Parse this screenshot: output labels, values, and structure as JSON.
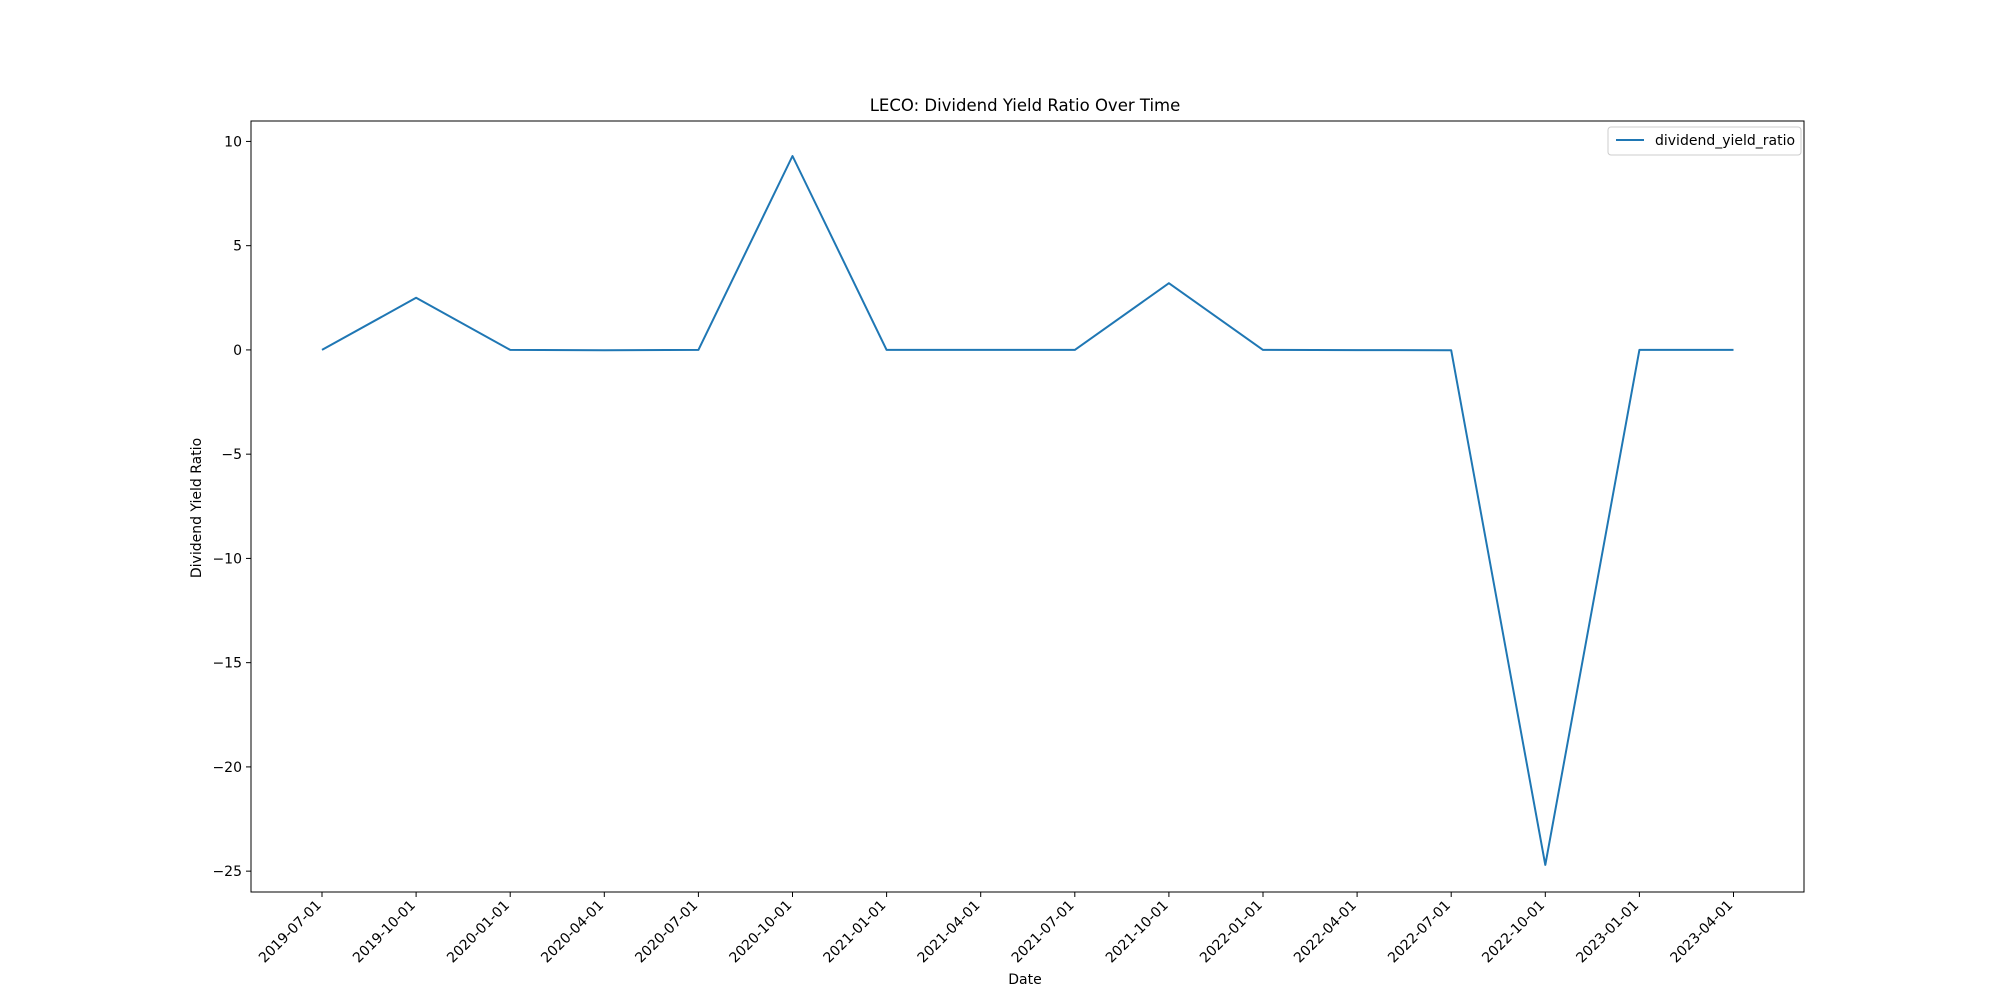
{
  "chart_data": {
    "type": "line",
    "title": "LECO: Dividend Yield Ratio Over Time",
    "xlabel": "Date",
    "ylabel": "Dividend Yield Ratio",
    "x": [
      "2019-07-01",
      "2019-10-01",
      "2020-01-01",
      "2020-04-01",
      "2020-07-01",
      "2020-10-01",
      "2021-01-01",
      "2021-04-01",
      "2021-07-01",
      "2021-10-01",
      "2022-01-01",
      "2022-04-01",
      "2022-07-01",
      "2022-10-01",
      "2023-01-01",
      "2023-04-01"
    ],
    "series": [
      {
        "name": "dividend_yield_ratio",
        "color": "#1f77b4",
        "values": [
          0.0,
          2.5,
          0.0,
          -0.02,
          0.0,
          9.3,
          0.0,
          0.0,
          0.0,
          3.2,
          0.0,
          -0.01,
          -0.02,
          -24.7,
          0.0,
          0.0
        ]
      }
    ],
    "yticks": [
      10,
      5,
      0,
      -5,
      -10,
      -15,
      -20,
      -25
    ],
    "ytick_labels": [
      "10",
      "5",
      "0",
      "−5",
      "−10",
      "−15",
      "−20",
      "−25"
    ],
    "ylim": [
      -26.0,
      10.98
    ],
    "grid": false,
    "legend": "upper right"
  }
}
